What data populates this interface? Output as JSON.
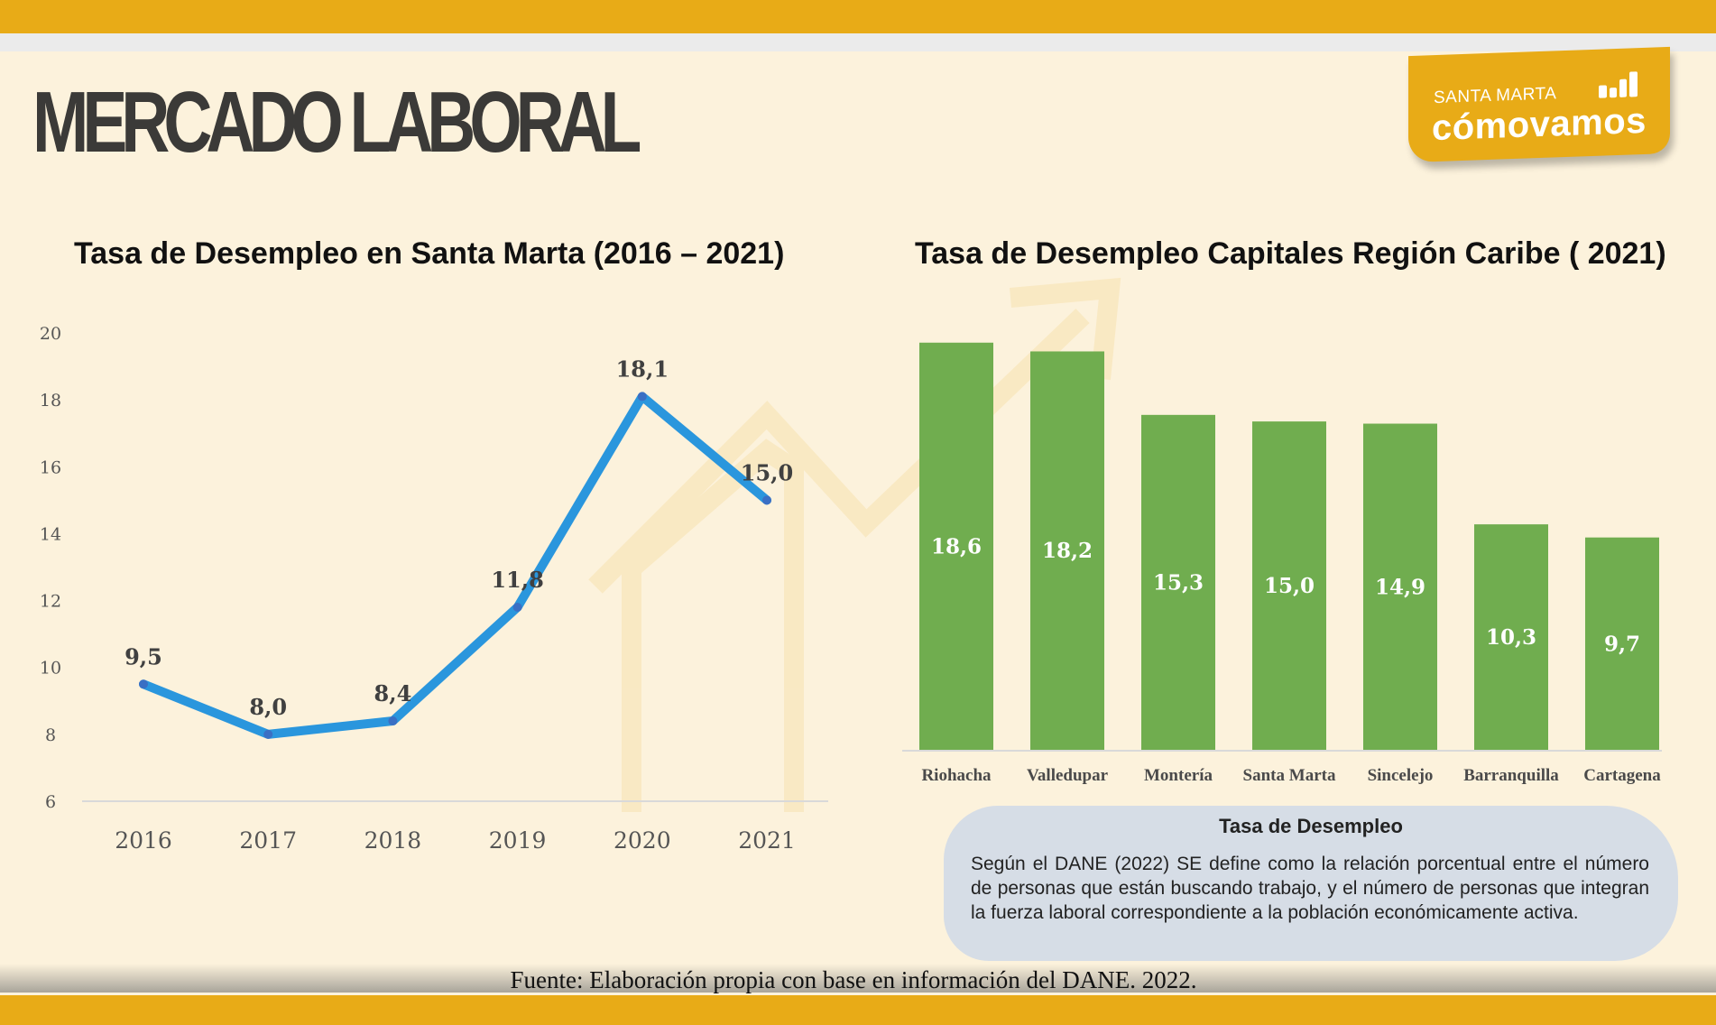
{
  "header": {
    "title": "MERCADO LABORAL",
    "logo": {
      "line1": "SANTA MARTA",
      "line2": "cómovamos",
      "icon": "bar-chart-icon"
    }
  },
  "colors": {
    "brand": "#e8ab17",
    "line": "#2a96dd",
    "bars": "#70ad4f",
    "background": "#fcf2dc",
    "info_box": "#d6dde6"
  },
  "chart_data": [
    {
      "type": "line",
      "title": "Tasa de Desempleo en Santa Marta (2016 – 2021)",
      "x": [
        "2016",
        "2017",
        "2018",
        "2019",
        "2020",
        "2021"
      ],
      "values": [
        9.5,
        8.0,
        8.4,
        11.8,
        18.1,
        15.0
      ],
      "data_labels": [
        "9,5",
        "8,0",
        "8,4",
        "11,8",
        "18,1",
        "15,0"
      ],
      "yticks": [
        "6",
        "8",
        "10",
        "12",
        "14",
        "16",
        "18",
        "20"
      ],
      "ylim": [
        6,
        20
      ],
      "grid": false
    },
    {
      "type": "bar",
      "title": "Tasa de Desempleo Capitales Región Caribe ( 2021)",
      "categories": [
        "Riohacha",
        "Valledupar",
        "Montería",
        "Santa Marta",
        "Sincelejo",
        "Barranquilla",
        "Cartagena"
      ],
      "values": [
        18.6,
        18.2,
        15.3,
        15.0,
        14.9,
        10.3,
        9.7
      ],
      "data_labels": [
        "18,6",
        "18,2",
        "15,3",
        "15,0",
        "14,9",
        "10,3",
        "9,7"
      ],
      "ylim": [
        0,
        20
      ],
      "grid": false
    }
  ],
  "info_box": {
    "title": "Tasa de Desempleo",
    "text": "Según el DANE (2022) SE define como la relación porcentual entre el número de personas que están buscando trabajo, y el número de personas que integran la fuerza laboral correspondiente a la población económicamente activa."
  },
  "source": "Fuente: Elaboración propia con base en información del DANE. 2022."
}
